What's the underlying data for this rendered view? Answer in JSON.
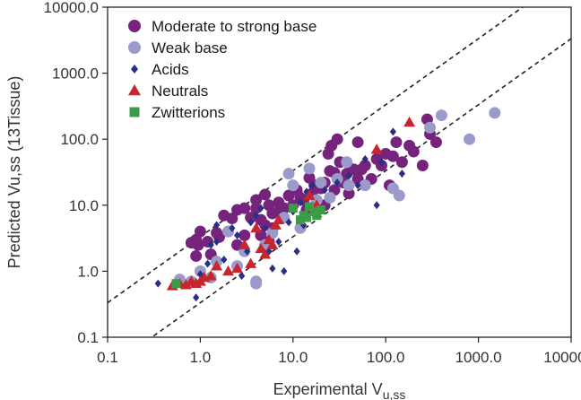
{
  "chart_data": {
    "type": "scatter",
    "xscale": "log",
    "yscale": "log",
    "xlim": [
      0.1,
      10000
    ],
    "ylim": [
      0.1,
      10000
    ],
    "xlabel": "Experimental V",
    "xlabel_sub": "u,ss",
    "ylabel": "Predicted Vu,ss  (13Tissue)",
    "xticks": [
      {
        "value": 0.1,
        "label": "0.1"
      },
      {
        "value": 1,
        "label": "1.0"
      },
      {
        "value": 10,
        "label": "10.0"
      },
      {
        "value": 100,
        "label": "100.0"
      },
      {
        "value": 1000,
        "label": "1000.0"
      },
      {
        "value": 10000,
        "label": "10000.0"
      }
    ],
    "yticks": [
      {
        "value": 0.1,
        "label": "0.1"
      },
      {
        "value": 1,
        "label": "1.0"
      },
      {
        "value": 10,
        "label": "10.0"
      },
      {
        "value": 100,
        "label": "100.0"
      },
      {
        "value": 1000,
        "label": "1000.0"
      },
      {
        "value": 10000,
        "label": "10000.0"
      }
    ],
    "grid": false,
    "legend_position": "top-left",
    "reference_lines": [
      {
        "x": [
          0.1,
          10000
        ],
        "y": [
          0.333,
          33333
        ],
        "style": "dashed"
      },
      {
        "x": [
          0.1,
          10000
        ],
        "y": [
          0.0333,
          3333
        ],
        "style": "dashed"
      }
    ],
    "series": [
      {
        "name": "Moderate to strong base",
        "marker": "circle",
        "color": "#76237d",
        "points": [
          [
            0.9,
            1.7
          ],
          [
            0.95,
            2.5
          ],
          [
            0.8,
            2.7
          ],
          [
            1.0,
            4.0
          ],
          [
            0.9,
            3.0
          ],
          [
            1.2,
            2.8
          ],
          [
            1.3,
            1.8
          ],
          [
            1.5,
            3.8
          ],
          [
            1.6,
            3.3
          ],
          [
            1.8,
            7.0
          ],
          [
            2.0,
            4.0
          ],
          [
            2.2,
            6.3
          ],
          [
            2.5,
            2.5
          ],
          [
            2.5,
            8.5
          ],
          [
            3.0,
            3.5
          ],
          [
            3.0,
            9.0
          ],
          [
            3.5,
            6.5
          ],
          [
            4.0,
            12.0
          ],
          [
            4.0,
            9.0
          ],
          [
            4.5,
            3.5
          ],
          [
            4.5,
            6.0
          ],
          [
            5.0,
            5.0
          ],
          [
            5.0,
            14.5
          ],
          [
            5.5,
            2.8
          ],
          [
            5.5,
            10.0
          ],
          [
            6.0,
            7.5
          ],
          [
            6.0,
            4.5
          ],
          [
            7.0,
            11.0
          ],
          [
            7.0,
            8.0
          ],
          [
            8.0,
            9.0
          ],
          [
            9.0,
            14.0
          ],
          [
            10.0,
            10.0
          ],
          [
            11.0,
            17.0
          ],
          [
            12.0,
            13.0
          ],
          [
            13.0,
            12.0
          ],
          [
            14.0,
            8.5
          ],
          [
            15.0,
            26.0
          ],
          [
            16.0,
            15.0
          ],
          [
            17.0,
            20.0
          ],
          [
            18.0,
            11.5
          ],
          [
            20.0,
            18.0
          ],
          [
            22.0,
            22.0
          ],
          [
            22.0,
            10.0
          ],
          [
            24.0,
            60.0
          ],
          [
            25.0,
            33.0
          ],
          [
            26.0,
            80.0
          ],
          [
            28.0,
            17.0
          ],
          [
            28.0,
            31.0
          ],
          [
            30.0,
            100.0
          ],
          [
            32.0,
            45.0
          ],
          [
            35.0,
            22.0
          ],
          [
            38.0,
            30.0
          ],
          [
            40.0,
            15.0
          ],
          [
            45.0,
            35.0
          ],
          [
            50.0,
            25.0
          ],
          [
            50.0,
            90.0
          ],
          [
            55.0,
            35.0
          ],
          [
            60.0,
            40.0
          ],
          [
            70.0,
            25.0
          ],
          [
            80.0,
            50.0
          ],
          [
            90.0,
            40.0
          ],
          [
            100.0,
            60.0
          ],
          [
            110.0,
            20.0
          ],
          [
            120.0,
            55.0
          ],
          [
            130.0,
            90.0
          ],
          [
            150.0,
            45.0
          ],
          [
            180.0,
            80.0
          ],
          [
            200.0,
            65.0
          ],
          [
            250.0,
            40.0
          ],
          [
            280.0,
            200.0
          ],
          [
            300.0,
            120.0
          ],
          [
            350.0,
            90.0
          ]
        ]
      },
      {
        "name": "Weak base",
        "marker": "circle",
        "color": "#9a9acb",
        "points": [
          [
            0.6,
            0.75
          ],
          [
            0.8,
            0.7
          ],
          [
            1.0,
            1.0
          ],
          [
            1.3,
            0.8
          ],
          [
            1.5,
            1.4
          ],
          [
            2.0,
            4.0
          ],
          [
            2.5,
            1.2
          ],
          [
            3.0,
            2.0
          ],
          [
            4.0,
            0.7
          ],
          [
            4.0,
            0.65
          ],
          [
            5.0,
            2.5
          ],
          [
            6.0,
            3.8
          ],
          [
            8.0,
            6.5
          ],
          [
            9.0,
            30.0
          ],
          [
            10.0,
            20.0
          ],
          [
            12.0,
            4.5
          ],
          [
            15.0,
            36.0
          ],
          [
            18.0,
            12.0
          ],
          [
            20.0,
            22.0
          ],
          [
            25.0,
            13.0
          ],
          [
            30.0,
            25.0
          ],
          [
            38.0,
            45.0
          ],
          [
            40.0,
            20.0
          ],
          [
            60.0,
            20.0
          ],
          [
            120.0,
            18.0
          ],
          [
            140.0,
            14.0
          ],
          [
            300.0,
            150.0
          ],
          [
            400.0,
            230.0
          ],
          [
            800.0,
            100.0
          ],
          [
            1500.0,
            250.0
          ]
        ]
      },
      {
        "name": "Acids",
        "marker": "diamond",
        "color": "#2b2f84",
        "points": [
          [
            0.35,
            0.65
          ],
          [
            0.9,
            0.4
          ],
          [
            1.0,
            0.9
          ],
          [
            1.2,
            1.3
          ],
          [
            1.3,
            2.5
          ],
          [
            1.5,
            2.8
          ],
          [
            1.5,
            5.0
          ],
          [
            1.8,
            1.5
          ],
          [
            2.2,
            4.5
          ],
          [
            2.5,
            3.5
          ],
          [
            2.8,
            0.85
          ],
          [
            3.2,
            2.0
          ],
          [
            3.5,
            5.5
          ],
          [
            4.0,
            7.0
          ],
          [
            4.5,
            9.0
          ],
          [
            5.0,
            4.5
          ],
          [
            5.5,
            2.0
          ],
          [
            6.0,
            1.1
          ],
          [
            7.0,
            2.8
          ],
          [
            8.0,
            1.0
          ],
          [
            9.0,
            5.5
          ],
          [
            10.0,
            8.0
          ],
          [
            11.0,
            2.0
          ],
          [
            12.0,
            11.0
          ],
          [
            13.0,
            5.0
          ],
          [
            14.0,
            16.0
          ],
          [
            16.0,
            20.0
          ],
          [
            22.0,
            17.0
          ],
          [
            30.0,
            22.0
          ],
          [
            40.0,
            28.0
          ],
          [
            50.0,
            20.0
          ],
          [
            60.0,
            50.0
          ],
          [
            80.0,
            10.0
          ],
          [
            90.0,
            45.0
          ],
          [
            120.0,
            130.0
          ],
          [
            150.0,
            30.0
          ]
        ]
      },
      {
        "name": "Neutrals",
        "marker": "triangle",
        "color": "#c8262e",
        "points": [
          [
            0.5,
            0.6
          ],
          [
            0.6,
            0.65
          ],
          [
            0.7,
            0.62
          ],
          [
            0.8,
            0.7
          ],
          [
            0.9,
            0.65
          ],
          [
            1.0,
            0.7
          ],
          [
            1.1,
            0.8
          ],
          [
            1.3,
            0.85
          ],
          [
            1.5,
            1.2
          ],
          [
            2.0,
            1.0
          ],
          [
            2.5,
            1.1
          ],
          [
            3.0,
            2.5
          ],
          [
            3.5,
            1.3
          ],
          [
            4.0,
            4.5
          ],
          [
            4.5,
            2.2
          ],
          [
            5.0,
            1.8
          ],
          [
            5.5,
            3.0
          ],
          [
            6.0,
            2.5
          ],
          [
            6.5,
            5.0
          ],
          [
            7.0,
            6.0
          ],
          [
            15.0,
            14.0
          ],
          [
            18.0,
            10.0
          ],
          [
            80.0,
            70.0
          ],
          [
            180.0,
            180.0
          ]
        ]
      },
      {
        "name": "Zwitterions",
        "marker": "square",
        "color": "#3d9a48",
        "points": [
          [
            0.55,
            0.65
          ],
          [
            10.0,
            9.0
          ],
          [
            12.0,
            6.0
          ],
          [
            13.0,
            7.0
          ],
          [
            14.0,
            6.5
          ],
          [
            15.0,
            9.5
          ],
          [
            17.0,
            8.0
          ],
          [
            18.0,
            7.0
          ],
          [
            20.0,
            8.5
          ]
        ]
      }
    ]
  }
}
